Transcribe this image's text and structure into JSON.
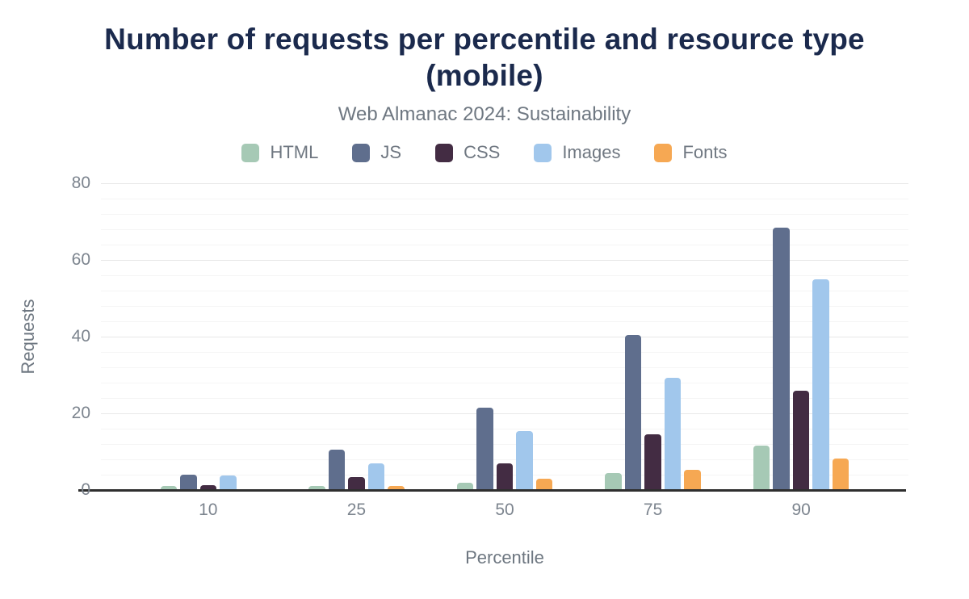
{
  "header": {
    "title": "Number of requests per percentile and resource type (mobile)",
    "subtitle": "Web Almanac 2024: Sustainability"
  },
  "colors": {
    "title_text": "#1b2a4d",
    "subtitle_text": "#6e7781",
    "tick_text": "#7c848e",
    "axis_line": "#2e2e2e",
    "grid_major": "#e8e8e8",
    "grid_minor": "#f5f5f5",
    "background": "#ffffff"
  },
  "chart_data": {
    "type": "bar",
    "title": "Number of requests per percentile and resource type (mobile)",
    "subtitle": "Web Almanac 2024: Sustainability",
    "xlabel": "Percentile",
    "ylabel": "Requests",
    "categories": [
      "10",
      "25",
      "50",
      "75",
      "90"
    ],
    "series": [
      {
        "name": "HTML",
        "color": "#a6c9b5",
        "values": [
          1,
          1,
          2,
          4.5,
          11.5
        ]
      },
      {
        "name": "JS",
        "color": "#5f6e8d",
        "values": [
          4,
          10.5,
          21.5,
          40.5,
          68.5
        ]
      },
      {
        "name": "CSS",
        "color": "#432c43",
        "values": [
          1.3,
          3.4,
          7,
          14.5,
          26
        ]
      },
      {
        "name": "Images",
        "color": "#a1c7ec",
        "values": [
          3.8,
          7,
          15.3,
          29.3,
          55
        ]
      },
      {
        "name": "Fonts",
        "color": "#f6a853",
        "values": [
          0,
          1,
          3,
          5.2,
          8.2
        ]
      }
    ],
    "ylim": [
      0,
      80
    ],
    "yticks": [
      0,
      20,
      40,
      60,
      80
    ],
    "minor_grid_step": 4,
    "grid": true,
    "legend_position": "top"
  }
}
